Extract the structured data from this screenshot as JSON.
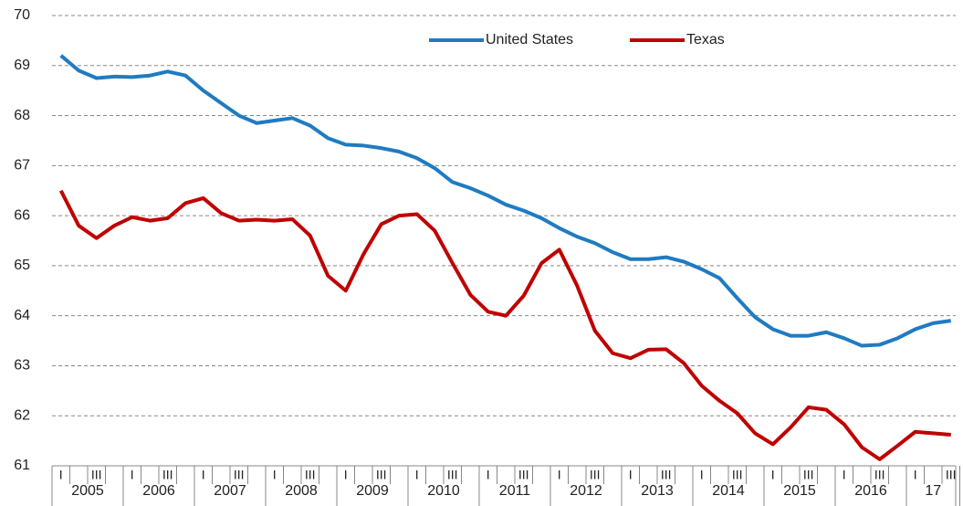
{
  "chart_data": {
    "type": "line",
    "categories": [
      "I",
      null,
      "III",
      null,
      "I",
      null,
      "III",
      null,
      "I",
      null,
      "III",
      null,
      "I",
      null,
      "III",
      null,
      "I",
      null,
      "III",
      null,
      "I",
      null,
      "III",
      null,
      "I",
      null,
      "III",
      null,
      "I",
      null,
      "III",
      null,
      "I",
      null,
      "III",
      null,
      "I",
      null,
      "III",
      null,
      "I",
      null,
      "III",
      null,
      "I",
      null,
      "III",
      null,
      "I",
      null,
      "III"
    ],
    "groups": [
      "2005",
      "2006",
      "2007",
      "2008",
      "2009",
      "2010",
      "2011",
      "2012",
      "2013",
      "2014",
      "2015",
      "2016",
      "17"
    ],
    "series": [
      {
        "name": "United States",
        "color": "#1f7bc1",
        "values": [
          69.2,
          68.9,
          68.75,
          68.78,
          68.77,
          68.8,
          68.88,
          68.8,
          68.5,
          68.25,
          68.0,
          67.85,
          67.9,
          67.95,
          67.8,
          67.55,
          67.42,
          67.4,
          67.35,
          67.28,
          67.15,
          66.95,
          66.67,
          66.55,
          66.4,
          66.22,
          66.1,
          65.95,
          65.75,
          65.58,
          65.45,
          65.27,
          65.13,
          65.13,
          65.17,
          65.08,
          64.93,
          64.75,
          64.35,
          63.97,
          63.73,
          63.6,
          63.6,
          63.67,
          63.55,
          63.4,
          63.42,
          63.55,
          63.73,
          63.85,
          63.9
        ]
      },
      {
        "name": "Texas",
        "color": "#c00000",
        "values": [
          66.5,
          65.8,
          65.55,
          65.8,
          65.97,
          65.9,
          65.95,
          66.25,
          66.35,
          66.05,
          65.9,
          65.92,
          65.9,
          65.93,
          65.6,
          64.8,
          64.5,
          65.23,
          65.83,
          66.0,
          66.03,
          65.7,
          65.05,
          64.42,
          64.08,
          64.0,
          64.4,
          65.05,
          65.32,
          64.6,
          63.7,
          63.25,
          63.15,
          63.32,
          63.33,
          63.05,
          62.6,
          62.3,
          62.05,
          61.65,
          61.43,
          61.77,
          62.17,
          62.12,
          61.83,
          61.37,
          61.13,
          61.4,
          61.68,
          61.65,
          61.62
        ]
      }
    ],
    "ylim": [
      61,
      70
    ],
    "yticks": [
      61,
      62,
      63,
      64,
      65,
      66,
      67,
      68,
      69,
      70
    ],
    "grid": true
  }
}
